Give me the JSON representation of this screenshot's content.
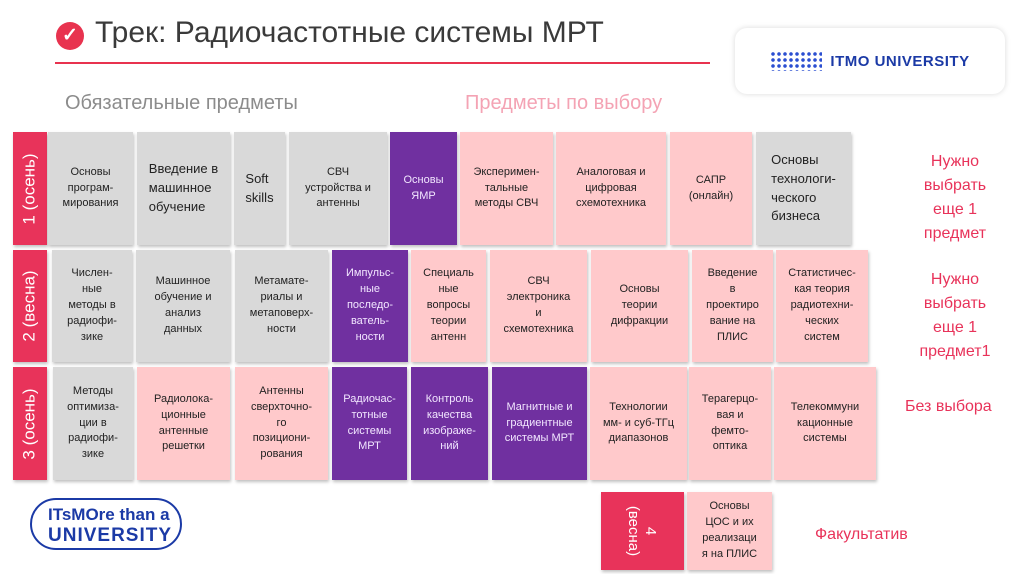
{
  "header": {
    "title": "Трек: Радиочастотные системы МРТ",
    "logo": "ITMO UNIVERSITY"
  },
  "subheaders": {
    "required": "Обязательные предметы",
    "elective": "Предметы по выбору"
  },
  "colors": {
    "accent": "#e8335a",
    "required": "#d9d9d9",
    "elective": "#ffc9cb",
    "track": "#7030a0"
  },
  "semesters": [
    {
      "label": "1 (осень)",
      "note": "Нужно\nвыбрать\nеще 1\nпредмет",
      "courses": [
        {
          "name": "Основы\nпрограм-\nмирования",
          "type": "required"
        },
        {
          "name": "Введение в\nмашинное\nобучение",
          "type": "required"
        },
        {
          "name": "Soft\nskills",
          "type": "required"
        },
        {
          "name": "СВЧ\nустройства и\nантенны",
          "type": "required"
        },
        {
          "name": "Основы\nЯМР",
          "type": "track"
        },
        {
          "name": "Эксперимен-\nтальные\nметоды СВЧ",
          "type": "elective"
        },
        {
          "name": "Аналоговая и\nцифровая\nсхемотехника",
          "type": "elective"
        },
        {
          "name": "САПР\n(онлайн)",
          "type": "elective"
        },
        {
          "name": "Основы\nтехнологи-\nческого\nбизнеса",
          "type": "required"
        }
      ]
    },
    {
      "label": "2 (весна)",
      "note": "Нужно\nвыбрать\nеще 1\nпредмет1",
      "courses": [
        {
          "name": "Числен-\nные\nметоды в\nрадиофи-\nзике",
          "type": "required"
        },
        {
          "name": "Машинное\nобучение и\nанализ\nданных",
          "type": "required"
        },
        {
          "name": "Метамате-\nриалы и\nметаповерх-\nности",
          "type": "required"
        },
        {
          "name": "Импульс-\nные\nпоследо-\nватель-\nности",
          "type": "track"
        },
        {
          "name": "Специаль\nные\nвопросы\nтеории\nантенн",
          "type": "elective"
        },
        {
          "name": "СВЧ\nэлектроника\nи\nсхемотехника",
          "type": "elective"
        },
        {
          "name": "Основы\nтеории\nдифракции",
          "type": "elective"
        },
        {
          "name": "Введение\nв\nпроектиро\nвание на\nПЛИС",
          "type": "elective"
        },
        {
          "name": "Статистичес-\nкая теория\nрадиотехни-\nческих\nсистем",
          "type": "elective"
        }
      ]
    },
    {
      "label": "3 (осень)",
      "note": "Без выбора",
      "courses": [
        {
          "name": "Методы\nоптимиза-\nции в\nрадиофи-\nзике",
          "type": "required"
        },
        {
          "name": "Радиолока-\nционные\nантенные\nрешетки",
          "type": "elective"
        },
        {
          "name": "Антенны\nсверхточно-\nго\nпозициони-\nрования",
          "type": "elective"
        },
        {
          "name": "Радиочас-\nтотные\nсистемы\nМРТ",
          "type": "track"
        },
        {
          "name": "Контроль\nкачества\nизображе-\nний",
          "type": "track"
        },
        {
          "name": "Магнитные и\nградиентные\nсистемы МРТ",
          "type": "track"
        },
        {
          "name": "Технологии\nмм- и суб-ТГц\nдиапазонов",
          "type": "elective"
        },
        {
          "name": "Терагерцо-\nвая и\nфемто-\nоптика",
          "type": "elective"
        },
        {
          "name": "Телекоммуни\nкационные\nсистемы",
          "type": "elective"
        }
      ]
    },
    {
      "label": "4 (весна)",
      "note": "Факультатив",
      "courses": [
        {
          "name": "Основы\nЦОС и их\nреализаци\nя на ПЛИС",
          "type": "elective"
        }
      ]
    }
  ],
  "footer_logo": {
    "line1": "ITsMOre than a",
    "line2": "UNIVERSITY"
  }
}
